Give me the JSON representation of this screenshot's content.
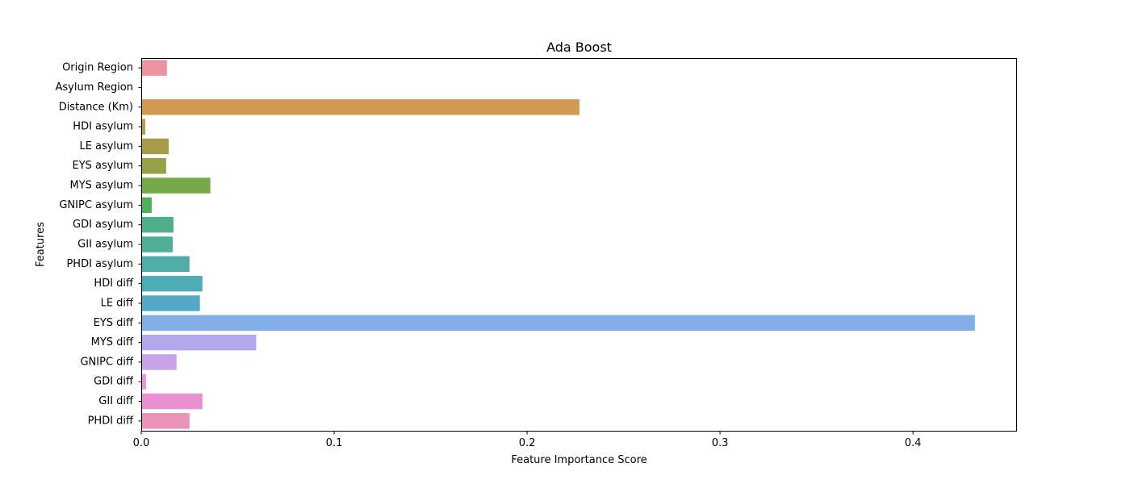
{
  "chart_data": {
    "type": "bar",
    "orientation": "horizontal",
    "title": "Ada Boost",
    "xlabel": "Feature Importance Score",
    "ylabel": "Features",
    "xlim": [
      0,
      0.4535
    ],
    "xticks": [
      {
        "value": 0,
        "label": "0.0"
      },
      {
        "value": 0.1,
        "label": "0.1"
      },
      {
        "value": 0.2,
        "label": "0.2"
      },
      {
        "value": 0.3,
        "label": "0.3"
      },
      {
        "value": 0.4,
        "label": "0.4"
      }
    ],
    "grid": false,
    "legend": "none",
    "categories": [
      "Origin Region",
      "Asylum Region",
      "Distance (Km)",
      "HDI asylum",
      "LE asylum",
      "EYS asylum",
      "MYS asylum",
      "GNIPC asylum",
      "GDI asylum",
      "GII asylum",
      "PHDI asylum",
      "HDI diff",
      "LE diff",
      "EYS diff",
      "MYS diff",
      "GNIPC diff",
      "GDI diff",
      "GII diff",
      "PHDI diff"
    ],
    "values": [
      0.0133,
      0.0,
      0.2271,
      0.0021,
      0.0142,
      0.0129,
      0.0358,
      0.0054,
      0.0167,
      0.0163,
      0.025,
      0.0317,
      0.0304,
      0.4321,
      0.0596,
      0.0183,
      0.0025,
      0.0317,
      0.025
    ],
    "colors": [
      "#ec93a0",
      "#e39a8d",
      "#d49a51",
      "#bc9a47",
      "#a79c48",
      "#96a147",
      "#74ab46",
      "#4faf5d",
      "#4eb08a",
      "#4eaf99",
      "#4fada8",
      "#4fabb6",
      "#52aac9",
      "#82afe5",
      "#b1a9ec",
      "#c9a2e8",
      "#e19ae0",
      "#e98ed0",
      "#ea92b9"
    ]
  }
}
